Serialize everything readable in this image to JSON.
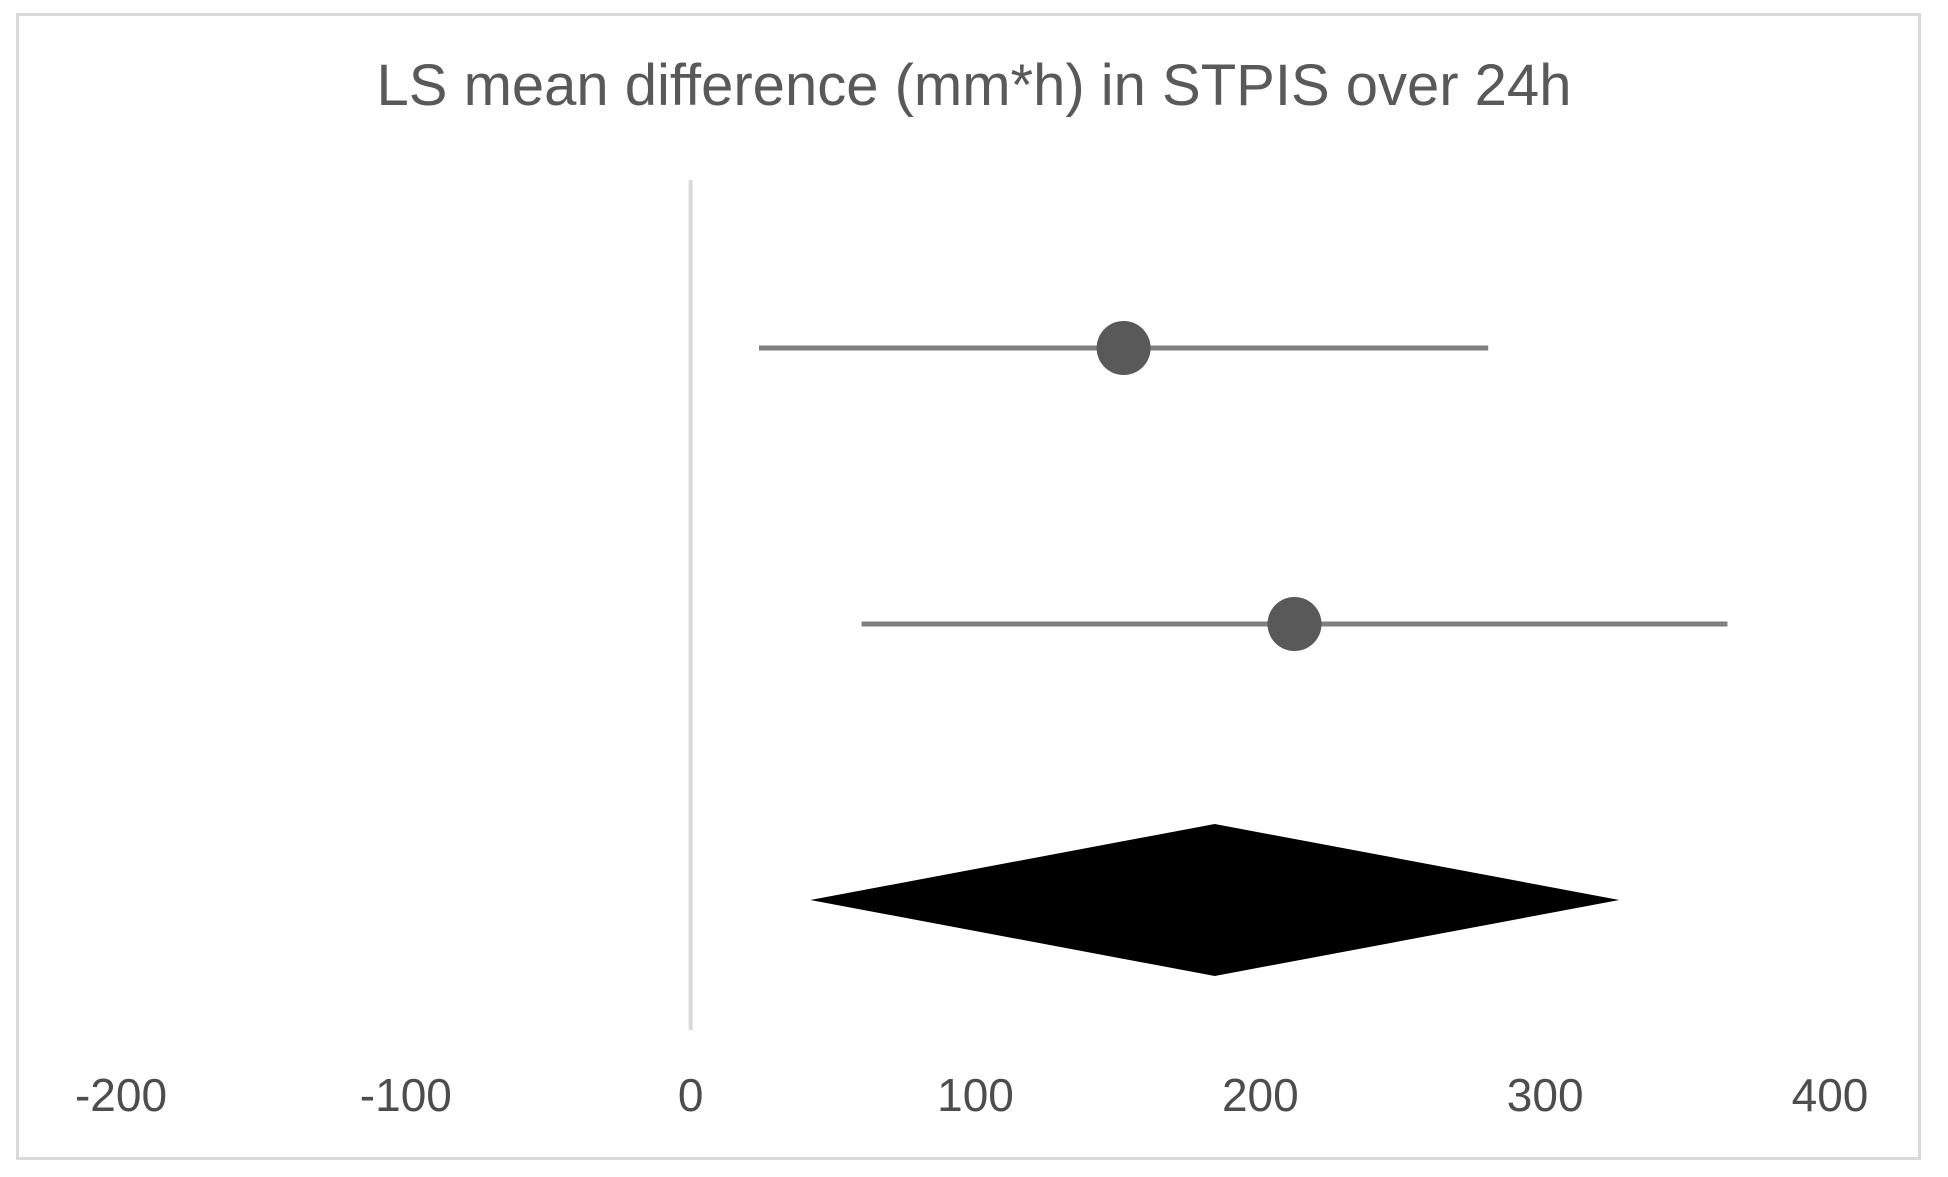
{
  "chart_data": {
    "type": "forest",
    "title": "LS mean difference (mm*h) in STPIS over 24h",
    "xlabel": "",
    "ylabel": "",
    "xlim": [
      -200,
      400
    ],
    "xticks": [
      "-200",
      "-100",
      "0",
      "100",
      "200",
      "300",
      "400"
    ],
    "xtick_values": [
      -200,
      -100,
      0,
      100,
      200,
      300,
      400
    ],
    "grid": "off",
    "legend": "none",
    "reference_line_x": 0,
    "studies": [
      {
        "estimate": 152,
        "ci_lower": 24,
        "ci_upper": 280
      },
      {
        "estimate": 212,
        "ci_lower": 60,
        "ci_upper": 364
      }
    ],
    "pooled": {
      "estimate": 184,
      "ci_lower": 42,
      "ci_upper": 326
    },
    "colors": {
      "background": "#ffffff",
      "frame_border": "#d9d9d9",
      "title_text": "#595959",
      "tick_text": "#4d4d4d",
      "reference_line": "#d9d9d9",
      "ci_line": "#7f7f7f",
      "point_marker": "#595959",
      "pooled_diamond": "#000000"
    }
  }
}
